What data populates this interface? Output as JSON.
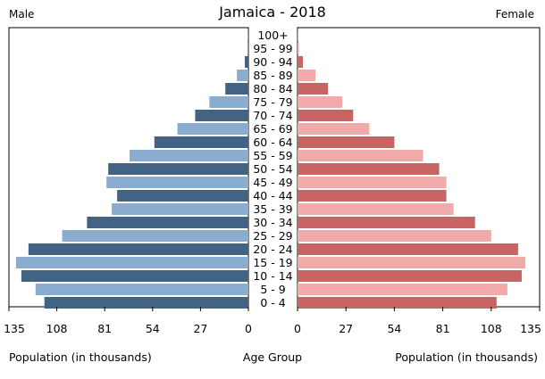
{
  "header": {
    "title": "Jamaica - 2018",
    "left_label": "Male",
    "right_label": "Female"
  },
  "footer": {
    "left_label": "Population (in thousands)",
    "center_label": "Age Group",
    "right_label": "Population (in thousands)"
  },
  "colors": {
    "male_dark": "#436384",
    "male_light": "#8aaccf",
    "female_dark": "#c86464",
    "female_light": "#f0aaaa"
  },
  "chart_data": {
    "type": "bar",
    "orientation": "horizontal",
    "title": "Jamaica - 2018",
    "categories": [
      "100+",
      "95 - 99",
      "90 - 94",
      "85 - 89",
      "80 - 84",
      "75 - 79",
      "70 - 74",
      "65 - 69",
      "60 - 64",
      "55 - 59",
      "50 - 54",
      "45 - 49",
      "40 - 44",
      "35 - 39",
      "30 - 34",
      "25 - 29",
      "20 - 24",
      "15 - 19",
      "10 - 14",
      "5 - 9",
      "0 - 4"
    ],
    "series": [
      {
        "name": "Male",
        "values": [
          0.3,
          0.6,
          2,
          6.5,
          13,
          22,
          30,
          40,
          53,
          67,
          79,
          80,
          74,
          77,
          91,
          105,
          124,
          131,
          128,
          120,
          115
        ]
      },
      {
        "name": "Female",
        "values": [
          0.2,
          0.8,
          3,
          10,
          17,
          25,
          31,
          40,
          54,
          70,
          79,
          83,
          83,
          87,
          99,
          108,
          123,
          127,
          125,
          117,
          111
        ]
      }
    ],
    "x_ticks_left": [
      "135",
      "108",
      "81",
      "54",
      "27",
      "0"
    ],
    "x_ticks_right": [
      "0",
      "27",
      "54",
      "81",
      "108",
      "135"
    ],
    "xlim": [
      0,
      135
    ],
    "xlabel": "Population (in thousands)",
    "ylabel": "Age Group",
    "grid": false
  }
}
